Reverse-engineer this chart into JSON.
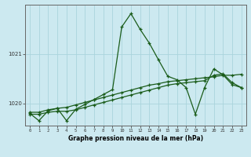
{
  "title": "Graphe pression niveau de la mer (hPa)",
  "background_color": "#cce9f0",
  "grid_color": "#aad4dc",
  "line_color": "#1a5c1a",
  "x_ticks": [
    0,
    1,
    2,
    3,
    4,
    5,
    6,
    7,
    8,
    9,
    10,
    11,
    12,
    13,
    14,
    15,
    16,
    17,
    18,
    19,
    20,
    21,
    22,
    23
  ],
  "ylim": [
    1019.55,
    1022.0
  ],
  "y_ticks": [
    1020,
    1021
  ],
  "series1": [
    1019.8,
    1019.65,
    1019.85,
    1019.9,
    1019.65,
    1019.88,
    1019.98,
    1020.08,
    1020.18,
    1020.28,
    1021.55,
    1021.82,
    1021.5,
    1021.22,
    1020.88,
    1020.55,
    1020.48,
    1020.32,
    1019.78,
    1020.32,
    1020.7,
    1020.58,
    1020.38,
    1020.32
  ],
  "series2": [
    1019.82,
    1019.82,
    1019.87,
    1019.9,
    1019.92,
    1019.97,
    1020.02,
    1020.07,
    1020.12,
    1020.17,
    1020.22,
    1020.27,
    1020.32,
    1020.37,
    1020.4,
    1020.44,
    1020.46,
    1020.48,
    1020.5,
    1020.52,
    1020.54,
    1020.57,
    1020.57,
    1020.59
  ],
  "series3": [
    1019.78,
    1019.78,
    1019.82,
    1019.84,
    1019.84,
    1019.87,
    1019.92,
    1019.97,
    1020.02,
    1020.07,
    1020.12,
    1020.17,
    1020.22,
    1020.27,
    1020.32,
    1020.37,
    1020.4,
    1020.42,
    1020.44,
    1020.46,
    1020.57,
    1020.6,
    1020.42,
    1020.32
  ]
}
